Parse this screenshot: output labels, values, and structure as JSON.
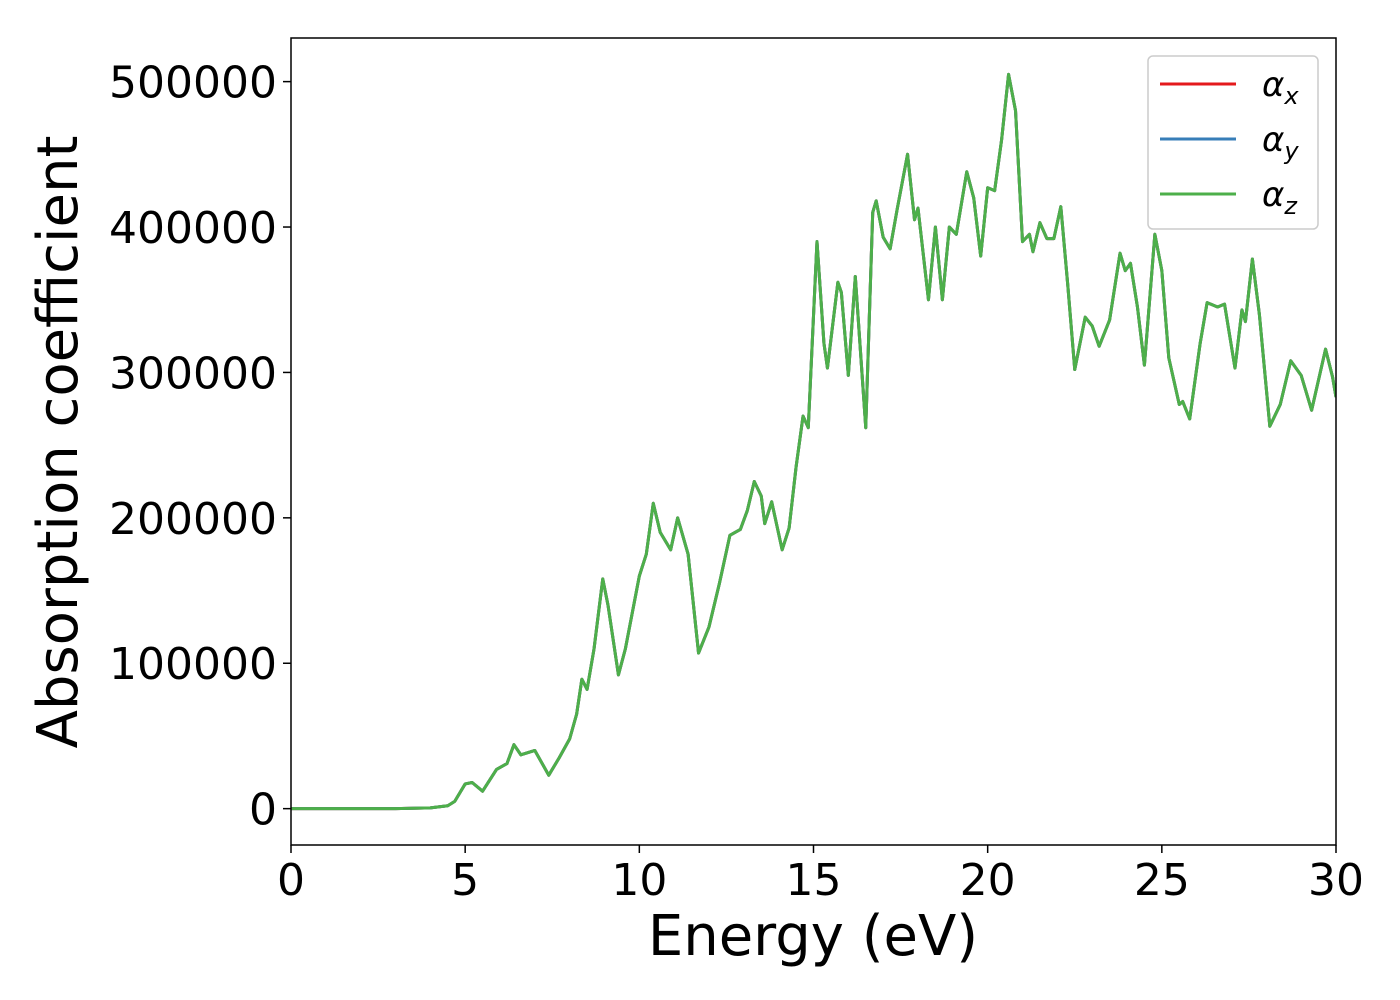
{
  "chart_data": {
    "type": "line",
    "xlabel": "Energy (eV)",
    "ylabel": "Absorption coefficient",
    "x": [
      0,
      1,
      2,
      3,
      4,
      4.5,
      4.7,
      5.0,
      5.2,
      5.5,
      5.9,
      6.2,
      6.4,
      6.6,
      7.0,
      7.4,
      7.7,
      8.0,
      8.2,
      8.35,
      8.5,
      8.7,
      8.95,
      9.1,
      9.4,
      9.6,
      9.8,
      10.0,
      10.2,
      10.4,
      10.6,
      10.9,
      11.1,
      11.4,
      11.7,
      12.0,
      12.3,
      12.6,
      12.9,
      13.1,
      13.3,
      13.5,
      13.6,
      13.8,
      14.1,
      14.3,
      14.5,
      14.7,
      14.85,
      15.1,
      15.3,
      15.4,
      15.7,
      15.8,
      16.0,
      16.2,
      16.5,
      16.7,
      16.8,
      17.0,
      17.2,
      17.4,
      17.7,
      17.9,
      18.0,
      18.3,
      18.5,
      18.7,
      18.9,
      19.1,
      19.4,
      19.6,
      19.8,
      20.0,
      20.2,
      20.4,
      20.6,
      20.8,
      21.0,
      21.2,
      21.3,
      21.5,
      21.7,
      21.9,
      22.1,
      22.3,
      22.5,
      22.8,
      23.0,
      23.2,
      23.5,
      23.8,
      23.95,
      24.1,
      24.3,
      24.5,
      24.8,
      25.0,
      25.2,
      25.5,
      25.6,
      25.8,
      26.1,
      26.3,
      26.6,
      26.8,
      27.1,
      27.3,
      27.4,
      27.6,
      27.8,
      28.1,
      28.4,
      28.7,
      29.0,
      29.3,
      29.7,
      29.9,
      30.0
    ],
    "series": [
      {
        "name": "αx",
        "color": "#e41a1c",
        "values": [
          0,
          0,
          0,
          0,
          500,
          2000,
          5000,
          17000,
          18000,
          12000,
          27000,
          31000,
          44000,
          37000,
          40000,
          23000,
          35000,
          48000,
          65000,
          89000,
          82000,
          110000,
          158000,
          140000,
          92000,
          110000,
          135000,
          160000,
          175000,
          210000,
          190000,
          178000,
          200000,
          175000,
          107000,
          125000,
          155000,
          188000,
          192000,
          205000,
          225000,
          215000,
          196000,
          211000,
          178000,
          193000,
          235000,
          270000,
          262000,
          390000,
          320000,
          303000,
          362000,
          355000,
          298000,
          366000,
          262000,
          410000,
          418000,
          393000,
          385000,
          412000,
          450000,
          405000,
          413000,
          350000,
          400000,
          350000,
          400000,
          395000,
          438000,
          420000,
          380000,
          427000,
          425000,
          460000,
          505000,
          480000,
          390000,
          395000,
          383000,
          403000,
          392000,
          392000,
          414000,
          360000,
          302000,
          338000,
          332000,
          318000,
          336000,
          382000,
          370000,
          375000,
          345000,
          305000,
          395000,
          370000,
          310000,
          278000,
          280000,
          268000,
          320000,
          348000,
          345000,
          347000,
          303000,
          343000,
          335000,
          378000,
          340000,
          263000,
          278000,
          308000,
          298000,
          274000,
          316000,
          297000,
          283000
        ]
      },
      {
        "name": "αy",
        "color": "#377eb8",
        "values": [
          0,
          0,
          0,
          0,
          500,
          2000,
          5000,
          17000,
          18000,
          12000,
          27000,
          31000,
          44000,
          37000,
          40000,
          23000,
          35000,
          48000,
          65000,
          89000,
          82000,
          110000,
          158000,
          140000,
          92000,
          110000,
          135000,
          160000,
          175000,
          210000,
          190000,
          178000,
          200000,
          175000,
          107000,
          125000,
          155000,
          188000,
          192000,
          205000,
          225000,
          215000,
          196000,
          211000,
          178000,
          193000,
          235000,
          270000,
          262000,
          390000,
          320000,
          303000,
          362000,
          355000,
          298000,
          366000,
          262000,
          410000,
          418000,
          393000,
          385000,
          412000,
          450000,
          405000,
          413000,
          350000,
          400000,
          350000,
          400000,
          395000,
          438000,
          420000,
          380000,
          427000,
          425000,
          460000,
          505000,
          480000,
          390000,
          395000,
          383000,
          403000,
          392000,
          392000,
          414000,
          360000,
          302000,
          338000,
          332000,
          318000,
          336000,
          382000,
          370000,
          375000,
          345000,
          305000,
          395000,
          370000,
          310000,
          278000,
          280000,
          268000,
          320000,
          348000,
          345000,
          347000,
          303000,
          343000,
          335000,
          378000,
          340000,
          263000,
          278000,
          308000,
          298000,
          274000,
          316000,
          297000,
          283000
        ]
      },
      {
        "name": "αz",
        "color": "#4daf4a",
        "values": [
          0,
          0,
          0,
          0,
          500,
          2000,
          5000,
          17000,
          18000,
          12000,
          27000,
          31000,
          44000,
          37000,
          40000,
          23000,
          35000,
          48000,
          65000,
          89000,
          82000,
          110000,
          158000,
          140000,
          92000,
          110000,
          135000,
          160000,
          175000,
          210000,
          190000,
          178000,
          200000,
          175000,
          107000,
          125000,
          155000,
          188000,
          192000,
          205000,
          225000,
          215000,
          196000,
          211000,
          178000,
          193000,
          235000,
          270000,
          262000,
          390000,
          320000,
          303000,
          362000,
          355000,
          298000,
          366000,
          262000,
          410000,
          418000,
          393000,
          385000,
          412000,
          450000,
          405000,
          413000,
          350000,
          400000,
          350000,
          400000,
          395000,
          438000,
          420000,
          380000,
          427000,
          425000,
          460000,
          505000,
          480000,
          390000,
          395000,
          383000,
          403000,
          392000,
          392000,
          414000,
          360000,
          302000,
          338000,
          332000,
          318000,
          336000,
          382000,
          370000,
          375000,
          345000,
          305000,
          395000,
          370000,
          310000,
          278000,
          280000,
          268000,
          320000,
          348000,
          345000,
          347000,
          303000,
          343000,
          335000,
          378000,
          340000,
          263000,
          278000,
          308000,
          298000,
          274000,
          316000,
          297000,
          283000
        ]
      }
    ],
    "xlim": [
      0,
      30
    ],
    "xticks": [
      0,
      5,
      10,
      15,
      20,
      25,
      30
    ],
    "ylim": [
      -25000,
      530000
    ],
    "yticks": [
      0,
      100000,
      200000,
      300000,
      400000,
      500000
    ],
    "grid": false,
    "legend": "upper right"
  }
}
